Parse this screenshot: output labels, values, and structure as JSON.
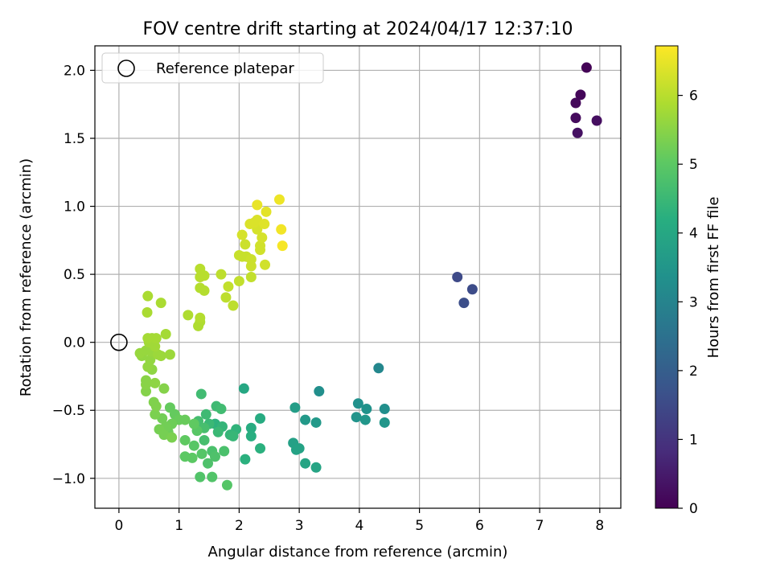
{
  "chart_data": {
    "type": "scatter",
    "title": "FOV centre drift starting at 2024/04/17 12:37:10",
    "xlabel": "Angular distance from reference (arcmin)",
    "ylabel": "Rotation from reference (arcmin)",
    "xlim": [
      -0.4,
      8.35
    ],
    "ylim": [
      -1.22,
      2.18
    ],
    "x_ticks": [
      0,
      1,
      2,
      3,
      4,
      5,
      6,
      7,
      8
    ],
    "x_tick_labels": [
      "0",
      "1",
      "2",
      "3",
      "4",
      "5",
      "6",
      "7",
      "8"
    ],
    "y_ticks": [
      -1.0,
      -0.5,
      0.0,
      0.5,
      1.0,
      1.5,
      2.0
    ],
    "y_tick_labels": [
      "−1.0",
      "−0.5",
      "0.0",
      "0.5",
      "1.0",
      "1.5",
      "2.0"
    ],
    "grid": true,
    "legend": {
      "position": "upper-left",
      "entries": [
        {
          "label": "Reference platepar",
          "marker": "open-circle"
        }
      ]
    },
    "reference_point": {
      "x": 0.0,
      "y": 0.0
    },
    "colorbar": {
      "label": "Hours from first FF file",
      "colormap": "viridis",
      "range": [
        0,
        6.72
      ],
      "ticks": [
        0,
        1,
        2,
        3,
        4,
        5,
        6
      ],
      "tick_labels": [
        "0",
        "1",
        "2",
        "3",
        "4",
        "5",
        "6"
      ]
    },
    "points": [
      {
        "x": 7.78,
        "y": 2.02,
        "h": 0.05
      },
      {
        "x": 7.68,
        "y": 1.82,
        "h": 0.1
      },
      {
        "x": 7.6,
        "y": 1.76,
        "h": 0.15
      },
      {
        "x": 7.6,
        "y": 1.65,
        "h": 0.2
      },
      {
        "x": 7.95,
        "y": 1.63,
        "h": 0.25
      },
      {
        "x": 7.63,
        "y": 1.54,
        "h": 0.3
      },
      {
        "x": 5.63,
        "y": 0.48,
        "h": 1.5
      },
      {
        "x": 5.88,
        "y": 0.39,
        "h": 1.55
      },
      {
        "x": 5.74,
        "y": 0.29,
        "h": 1.6
      },
      {
        "x": 4.32,
        "y": -0.19,
        "h": 3.1
      },
      {
        "x": 3.33,
        "y": -0.36,
        "h": 3.3
      },
      {
        "x": 3.98,
        "y": -0.45,
        "h": 3.35
      },
      {
        "x": 4.42,
        "y": -0.49,
        "h": 3.3
      },
      {
        "x": 4.12,
        "y": -0.49,
        "h": 3.4
      },
      {
        "x": 3.95,
        "y": -0.55,
        "h": 3.45
      },
      {
        "x": 4.1,
        "y": -0.57,
        "h": 3.5
      },
      {
        "x": 4.42,
        "y": -0.59,
        "h": 3.5
      },
      {
        "x": 3.1,
        "y": -0.57,
        "h": 3.6
      },
      {
        "x": 3.28,
        "y": -0.59,
        "h": 3.6
      },
      {
        "x": 2.93,
        "y": -0.48,
        "h": 3.7
      },
      {
        "x": 2.9,
        "y": -0.74,
        "h": 3.8
      },
      {
        "x": 2.95,
        "y": -0.79,
        "h": 3.85
      },
      {
        "x": 3.0,
        "y": -0.78,
        "h": 3.85
      },
      {
        "x": 3.1,
        "y": -0.89,
        "h": 3.9
      },
      {
        "x": 3.28,
        "y": -0.92,
        "h": 3.9
      },
      {
        "x": 2.08,
        "y": -0.34,
        "h": 4.0
      },
      {
        "x": 2.35,
        "y": -0.56,
        "h": 4.1
      },
      {
        "x": 2.2,
        "y": -0.63,
        "h": 4.15
      },
      {
        "x": 2.2,
        "y": -0.69,
        "h": 4.2
      },
      {
        "x": 2.35,
        "y": -0.78,
        "h": 4.25
      },
      {
        "x": 2.1,
        "y": -0.86,
        "h": 4.25
      },
      {
        "x": 1.6,
        "y": -0.6,
        "h": 4.3
      },
      {
        "x": 1.95,
        "y": -0.64,
        "h": 4.35
      },
      {
        "x": 1.72,
        "y": -0.62,
        "h": 4.4
      },
      {
        "x": 1.85,
        "y": -0.68,
        "h": 4.4
      },
      {
        "x": 1.9,
        "y": -0.69,
        "h": 4.45
      },
      {
        "x": 1.65,
        "y": -0.66,
        "h": 4.5
      },
      {
        "x": 1.5,
        "y": -0.6,
        "h": 4.5
      },
      {
        "x": 1.45,
        "y": -0.53,
        "h": 4.55
      },
      {
        "x": 1.62,
        "y": -0.47,
        "h": 4.55
      },
      {
        "x": 1.7,
        "y": -0.49,
        "h": 4.6
      },
      {
        "x": 1.37,
        "y": -0.38,
        "h": 4.6
      },
      {
        "x": 1.32,
        "y": -0.58,
        "h": 4.65
      },
      {
        "x": 1.42,
        "y": -0.63,
        "h": 4.7
      },
      {
        "x": 1.42,
        "y": -0.72,
        "h": 4.7
      },
      {
        "x": 1.55,
        "y": -0.8,
        "h": 4.75
      },
      {
        "x": 1.75,
        "y": -0.8,
        "h": 4.75
      },
      {
        "x": 1.6,
        "y": -0.84,
        "h": 4.8
      },
      {
        "x": 1.48,
        "y": -0.89,
        "h": 4.8
      },
      {
        "x": 1.35,
        "y": -0.99,
        "h": 4.85
      },
      {
        "x": 1.55,
        "y": -0.99,
        "h": 4.85
      },
      {
        "x": 1.8,
        "y": -1.05,
        "h": 4.9
      },
      {
        "x": 1.38,
        "y": -0.82,
        "h": 4.9
      },
      {
        "x": 1.25,
        "y": -0.76,
        "h": 4.95
      },
      {
        "x": 1.3,
        "y": -0.65,
        "h": 4.95
      },
      {
        "x": 1.22,
        "y": -0.85,
        "h": 5.0
      },
      {
        "x": 1.1,
        "y": -0.84,
        "h": 5.0
      },
      {
        "x": 1.1,
        "y": -0.72,
        "h": 5.05
      },
      {
        "x": 1.25,
        "y": -0.6,
        "h": 5.05
      },
      {
        "x": 0.85,
        "y": -0.48,
        "h": 5.1
      },
      {
        "x": 0.93,
        "y": -0.53,
        "h": 5.1
      },
      {
        "x": 1.0,
        "y": -0.57,
        "h": 5.15
      },
      {
        "x": 1.1,
        "y": -0.57,
        "h": 5.15
      },
      {
        "x": 0.88,
        "y": -0.6,
        "h": 5.2
      },
      {
        "x": 0.82,
        "y": -0.66,
        "h": 5.2
      },
      {
        "x": 0.78,
        "y": -0.62,
        "h": 5.25
      },
      {
        "x": 0.72,
        "y": -0.56,
        "h": 5.25
      },
      {
        "x": 0.67,
        "y": -0.64,
        "h": 5.3
      },
      {
        "x": 0.75,
        "y": -0.68,
        "h": 5.3
      },
      {
        "x": 0.88,
        "y": -0.7,
        "h": 5.35
      },
      {
        "x": 0.6,
        "y": -0.53,
        "h": 5.35
      },
      {
        "x": 0.62,
        "y": -0.47,
        "h": 5.4
      },
      {
        "x": 0.58,
        "y": -0.44,
        "h": 5.4
      },
      {
        "x": 0.75,
        "y": -0.34,
        "h": 5.45
      },
      {
        "x": 0.45,
        "y": -0.36,
        "h": 5.45
      },
      {
        "x": 0.45,
        "y": -0.31,
        "h": 5.5
      },
      {
        "x": 0.45,
        "y": -0.28,
        "h": 5.5
      },
      {
        "x": 0.6,
        "y": -0.3,
        "h": 5.55
      },
      {
        "x": 0.55,
        "y": -0.2,
        "h": 5.55
      },
      {
        "x": 0.48,
        "y": -0.18,
        "h": 5.6
      },
      {
        "x": 0.52,
        "y": -0.13,
        "h": 5.6
      },
      {
        "x": 0.38,
        "y": -0.1,
        "h": 5.6
      },
      {
        "x": 0.35,
        "y": -0.08,
        "h": 5.65
      },
      {
        "x": 0.45,
        "y": -0.06,
        "h": 5.65
      },
      {
        "x": 0.55,
        "y": -0.07,
        "h": 5.65
      },
      {
        "x": 0.65,
        "y": -0.09,
        "h": 5.7
      },
      {
        "x": 0.7,
        "y": -0.1,
        "h": 5.7
      },
      {
        "x": 0.85,
        "y": -0.09,
        "h": 5.7
      },
      {
        "x": 0.6,
        "y": -0.03,
        "h": 5.75
      },
      {
        "x": 0.5,
        "y": 0.0,
        "h": 5.75
      },
      {
        "x": 0.55,
        "y": 0.03,
        "h": 5.75
      },
      {
        "x": 0.62,
        "y": 0.03,
        "h": 5.8
      },
      {
        "x": 0.48,
        "y": 0.03,
        "h": 5.8
      },
      {
        "x": 0.78,
        "y": 0.06,
        "h": 5.8
      },
      {
        "x": 0.47,
        "y": 0.22,
        "h": 5.85
      },
      {
        "x": 0.48,
        "y": 0.34,
        "h": 5.85
      },
      {
        "x": 0.7,
        "y": 0.29,
        "h": 5.85
      },
      {
        "x": 1.15,
        "y": 0.2,
        "h": 5.9
      },
      {
        "x": 1.32,
        "y": 0.12,
        "h": 5.9
      },
      {
        "x": 1.35,
        "y": 0.15,
        "h": 5.9
      },
      {
        "x": 1.35,
        "y": 0.18,
        "h": 5.95
      },
      {
        "x": 1.35,
        "y": 0.4,
        "h": 5.95
      },
      {
        "x": 1.42,
        "y": 0.38,
        "h": 5.95
      },
      {
        "x": 1.35,
        "y": 0.48,
        "h": 6.0
      },
      {
        "x": 1.42,
        "y": 0.49,
        "h": 6.0
      },
      {
        "x": 1.35,
        "y": 0.54,
        "h": 6.0
      },
      {
        "x": 1.7,
        "y": 0.5,
        "h": 6.05
      },
      {
        "x": 1.78,
        "y": 0.33,
        "h": 6.05
      },
      {
        "x": 1.9,
        "y": 0.27,
        "h": 6.05
      },
      {
        "x": 1.82,
        "y": 0.41,
        "h": 6.1
      },
      {
        "x": 2.0,
        "y": 0.45,
        "h": 6.1
      },
      {
        "x": 2.2,
        "y": 0.48,
        "h": 6.1
      },
      {
        "x": 2.0,
        "y": 0.64,
        "h": 6.15
      },
      {
        "x": 2.05,
        "y": 0.63,
        "h": 6.15
      },
      {
        "x": 2.12,
        "y": 0.63,
        "h": 6.15
      },
      {
        "x": 2.2,
        "y": 0.56,
        "h": 6.2
      },
      {
        "x": 2.2,
        "y": 0.61,
        "h": 6.2
      },
      {
        "x": 2.1,
        "y": 0.72,
        "h": 6.2
      },
      {
        "x": 2.35,
        "y": 0.68,
        "h": 6.25
      },
      {
        "x": 2.35,
        "y": 0.71,
        "h": 6.25
      },
      {
        "x": 2.43,
        "y": 0.57,
        "h": 6.25
      },
      {
        "x": 2.05,
        "y": 0.79,
        "h": 6.3
      },
      {
        "x": 2.38,
        "y": 0.77,
        "h": 6.3
      },
      {
        "x": 2.3,
        "y": 0.83,
        "h": 6.3
      },
      {
        "x": 2.18,
        "y": 0.87,
        "h": 6.35
      },
      {
        "x": 2.25,
        "y": 0.88,
        "h": 6.35
      },
      {
        "x": 2.3,
        "y": 0.9,
        "h": 6.35
      },
      {
        "x": 2.42,
        "y": 0.87,
        "h": 6.4
      },
      {
        "x": 2.45,
        "y": 0.96,
        "h": 6.45
      },
      {
        "x": 2.3,
        "y": 1.01,
        "h": 6.5
      },
      {
        "x": 2.67,
        "y": 1.05,
        "h": 6.55
      },
      {
        "x": 2.7,
        "y": 0.83,
        "h": 6.6
      },
      {
        "x": 2.72,
        "y": 0.71,
        "h": 6.65
      }
    ]
  }
}
